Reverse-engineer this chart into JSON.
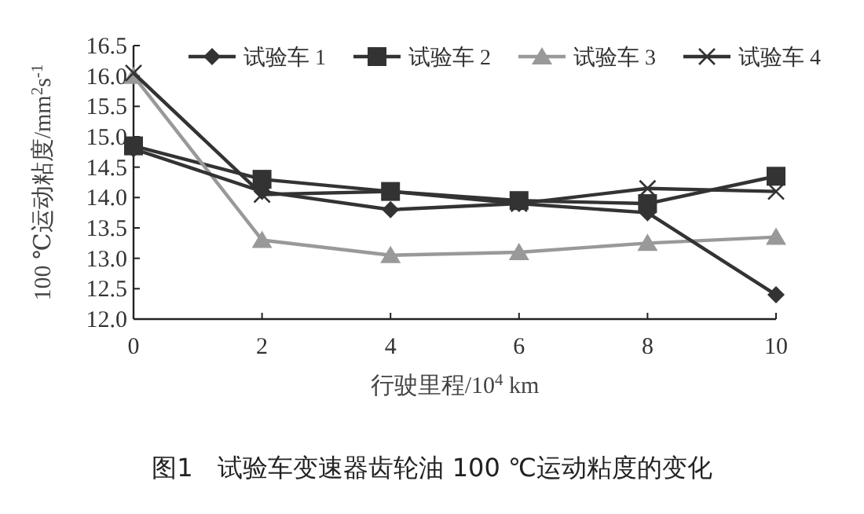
{
  "chart_data": {
    "type": "line",
    "ylabel": "100 ℃运动粘度/mm$^{2}$s$^{-1}$",
    "xlabel": "行驶里程/10$^{4}$ km",
    "annotations": [
      "图1　试验车变速器齿轮油 100 ℃运动粘度的变化"
    ],
    "x": [
      0,
      2,
      4,
      6,
      8,
      10
    ],
    "series": [
      {
        "name": "试验车 1",
        "color": "#333333",
        "marker": "diamond",
        "values": [
          14.8,
          14.1,
          13.8,
          13.9,
          13.75,
          12.4
        ]
      },
      {
        "name": "试验车 2",
        "color": "#333333",
        "marker": "square",
        "values": [
          14.85,
          14.3,
          14.1,
          13.95,
          13.9,
          14.35
        ]
      },
      {
        "name": "试验车 3",
        "color": "#999999",
        "marker": "triangle",
        "values": [
          16.0,
          13.3,
          13.05,
          13.1,
          13.25,
          13.35
        ]
      },
      {
        "name": "试验车 4",
        "color": "#333333",
        "marker": "cross",
        "values": [
          16.05,
          14.05,
          14.1,
          13.9,
          14.15,
          14.1
        ]
      }
    ],
    "xlim": [
      0,
      10
    ],
    "xticks": [
      0,
      2,
      4,
      6,
      8,
      10
    ],
    "ylim": [
      12,
      16.5
    ],
    "yticks": [
      {
        "value": 12,
        "label": "12.0"
      },
      {
        "value": 12.5,
        "label": "12.5"
      },
      {
        "value": 13,
        "label": "13.0"
      },
      {
        "value": 13.5,
        "label": "13.5"
      },
      {
        "value": 14,
        "label": "14.0"
      },
      {
        "value": 14.5,
        "label": "14.5"
      },
      {
        "value": 15,
        "label": "15.0"
      },
      {
        "value": 15.5,
        "label": "15.5"
      },
      {
        "value": 16,
        "label": "16.0"
      },
      {
        "value": 16.5,
        "label": "16.5"
      }
    ],
    "legend": "top right",
    "grid": false
  }
}
